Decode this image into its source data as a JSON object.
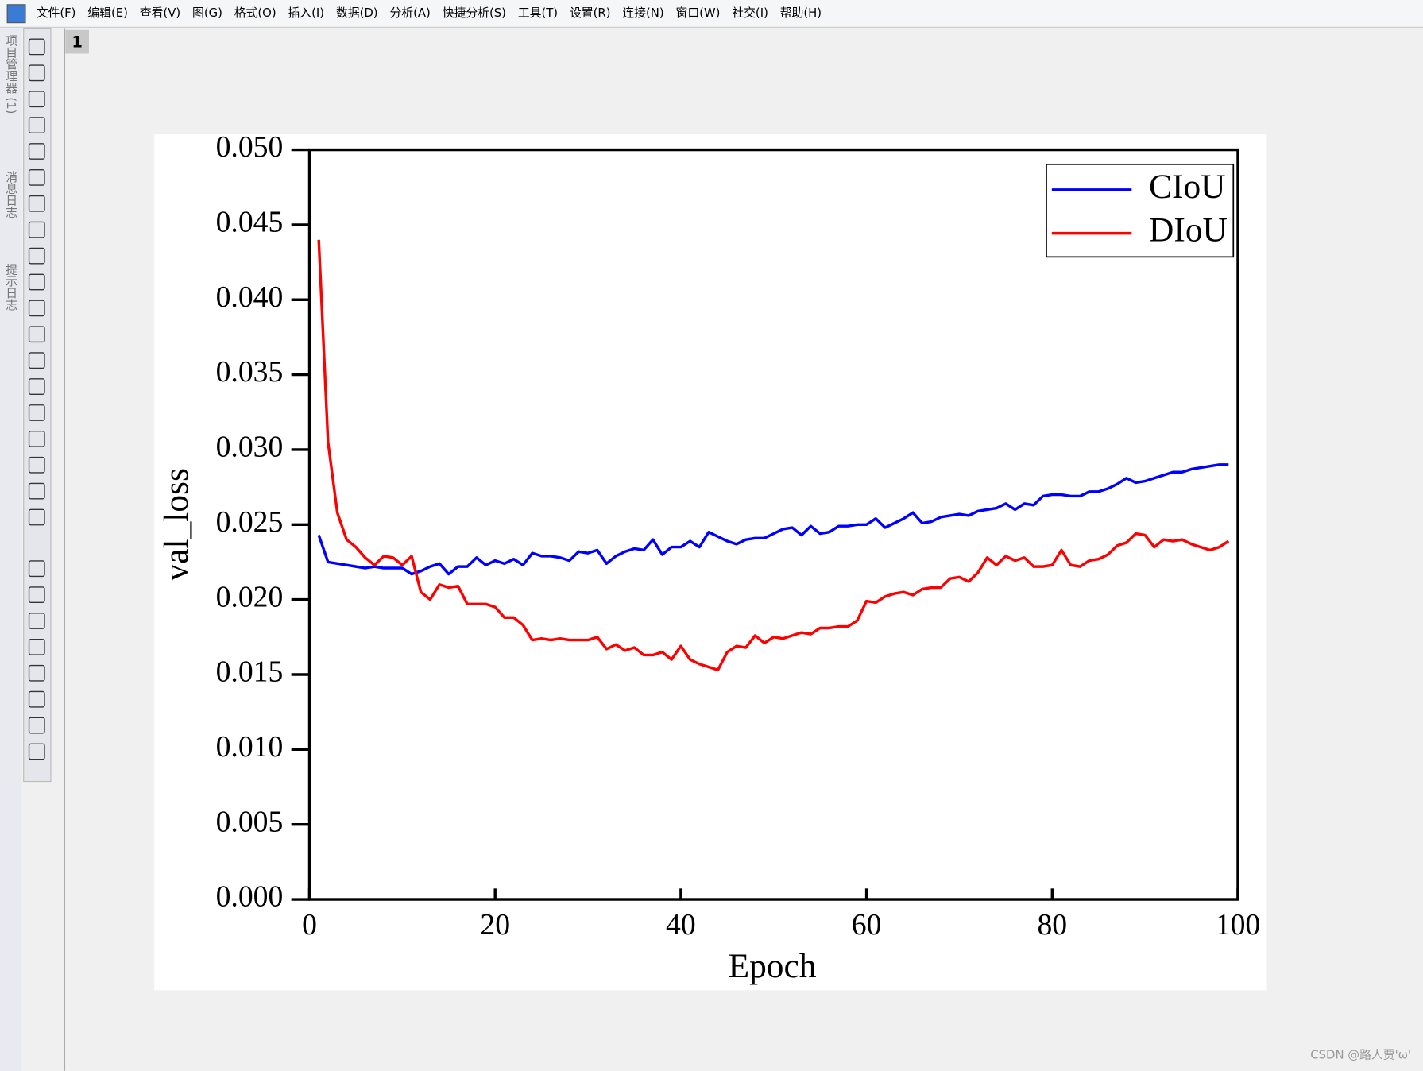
{
  "menu": [
    "文件(F)",
    "编辑(E)",
    "查看(V)",
    "图(G)",
    "格式(O)",
    "插入(I)",
    "数据(D)",
    "分析(A)",
    "快捷分析(S)",
    "工具(T)",
    "设置(R)",
    "连接(N)",
    "窗口(W)",
    "社交(I)",
    "帮助(H)"
  ],
  "side_tabs": [
    "项目管理器 (1)",
    "消息日志",
    "提示日志"
  ],
  "page_tab": "1",
  "watermark": "CSDN @路人贾'ω'",
  "chart_data": {
    "type": "line",
    "x_label": "Epoch",
    "y_label": "val_loss",
    "x": [
      1,
      2,
      3,
      4,
      5,
      6,
      7,
      8,
      9,
      10,
      11,
      12,
      13,
      14,
      15,
      16,
      17,
      18,
      19,
      20,
      21,
      22,
      23,
      24,
      25,
      26,
      27,
      28,
      29,
      30,
      31,
      32,
      33,
      34,
      35,
      36,
      37,
      38,
      39,
      40,
      41,
      42,
      43,
      44,
      45,
      46,
      47,
      48,
      49,
      50,
      51,
      52,
      53,
      54,
      55,
      56,
      57,
      58,
      59,
      60,
      61,
      62,
      63,
      64,
      65,
      66,
      67,
      68,
      69,
      70,
      71,
      72,
      73,
      74,
      75,
      76,
      77,
      78,
      79,
      80,
      81,
      82,
      83,
      84,
      85,
      86,
      87,
      88,
      89,
      90,
      91,
      92,
      93,
      94,
      95,
      96,
      97,
      98,
      99
    ],
    "series": [
      {
        "name": "CIoU",
        "color": "#0000ff",
        "values": [
          0.0243,
          0.0225,
          0.0224,
          0.0223,
          0.0222,
          0.0221,
          0.0222,
          0.0221,
          0.0221,
          0.0221,
          0.0217,
          0.0219,
          0.0222,
          0.0224,
          0.0217,
          0.0222,
          0.0222,
          0.0228,
          0.0223,
          0.0226,
          0.0224,
          0.0227,
          0.0223,
          0.0231,
          0.0229,
          0.0229,
          0.0228,
          0.0226,
          0.0232,
          0.0231,
          0.0233,
          0.0224,
          0.0229,
          0.0232,
          0.0234,
          0.0233,
          0.024,
          0.023,
          0.0235,
          0.0235,
          0.0239,
          0.0235,
          0.0245,
          0.0242,
          0.0239,
          0.0237,
          0.024,
          0.0241,
          0.0241,
          0.0244,
          0.0247,
          0.0248,
          0.0243,
          0.0249,
          0.0244,
          0.0245,
          0.0249,
          0.0249,
          0.025,
          0.025,
          0.0254,
          0.0248,
          0.0251,
          0.0254,
          0.0258,
          0.0251,
          0.0252,
          0.0255,
          0.0256,
          0.0257,
          0.0256,
          0.0259,
          0.026,
          0.0261,
          0.0264,
          0.026,
          0.0264,
          0.0263,
          0.0269,
          0.027,
          0.027,
          0.0269,
          0.0269,
          0.0272,
          0.0272,
          0.0274,
          0.0277,
          0.0281,
          0.0278,
          0.0279,
          0.0281,
          0.0283,
          0.0285,
          0.0285,
          0.0287,
          0.0288,
          0.0289,
          0.029,
          0.029
        ]
      },
      {
        "name": "DIoU",
        "color": "#ff0000",
        "values": [
          0.044,
          0.0305,
          0.0258,
          0.024,
          0.0235,
          0.0228,
          0.0223,
          0.0229,
          0.0228,
          0.0223,
          0.0229,
          0.0205,
          0.02,
          0.021,
          0.0208,
          0.0209,
          0.0197,
          0.0197,
          0.0197,
          0.0195,
          0.0188,
          0.0188,
          0.0183,
          0.0173,
          0.0174,
          0.0173,
          0.0174,
          0.0173,
          0.0173,
          0.0173,
          0.0175,
          0.0167,
          0.017,
          0.0166,
          0.0168,
          0.0163,
          0.0163,
          0.0165,
          0.016,
          0.0169,
          0.016,
          0.0157,
          0.0155,
          0.0153,
          0.0165,
          0.0169,
          0.0168,
          0.0176,
          0.0171,
          0.0175,
          0.0174,
          0.0176,
          0.0178,
          0.0177,
          0.0181,
          0.0181,
          0.0182,
          0.0182,
          0.0186,
          0.0199,
          0.0198,
          0.0202,
          0.0204,
          0.0205,
          0.0203,
          0.0207,
          0.0208,
          0.0208,
          0.0214,
          0.0215,
          0.0212,
          0.0218,
          0.0228,
          0.0223,
          0.0229,
          0.0226,
          0.0228,
          0.0222,
          0.0222,
          0.0223,
          0.0233,
          0.0223,
          0.0222,
          0.0226,
          0.0227,
          0.023,
          0.0236,
          0.0238,
          0.0244,
          0.0243,
          0.0235,
          0.024,
          0.0239,
          0.024,
          0.0237,
          0.0235,
          0.0233,
          0.0235,
          0.0239
        ]
      }
    ],
    "xlim": [
      0,
      100
    ],
    "xticks": [
      0,
      20,
      40,
      60,
      80,
      100
    ],
    "ylim": [
      0,
      0.05
    ],
    "yticks": [
      {
        "value": 0,
        "label": "0.000"
      },
      {
        "value": 0.005,
        "label": "0.005"
      },
      {
        "value": 0.01,
        "label": "0.010"
      },
      {
        "value": 0.015,
        "label": "0.015"
      },
      {
        "value": 0.02,
        "label": "0.020"
      },
      {
        "value": 0.025,
        "label": "0.025"
      },
      {
        "value": 0.03,
        "label": "0.030"
      },
      {
        "value": 0.035,
        "label": "0.035"
      },
      {
        "value": 0.04,
        "label": "0.040"
      },
      {
        "value": 0.045,
        "label": "0.045"
      },
      {
        "value": 0.05,
        "label": "0.050"
      }
    ],
    "legend": "upper right"
  }
}
